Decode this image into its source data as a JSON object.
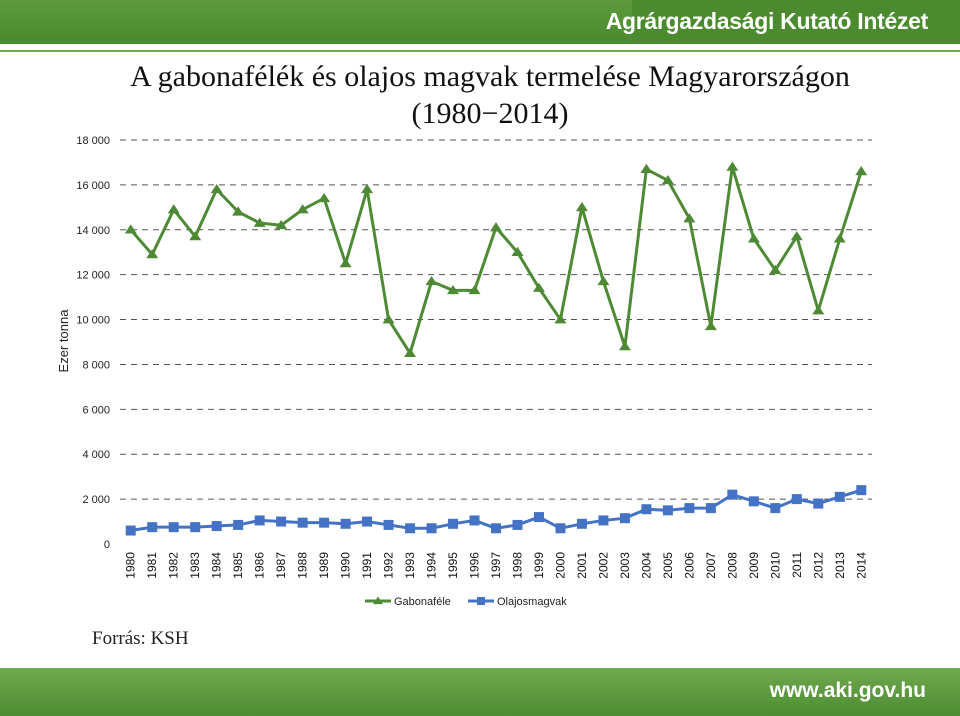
{
  "header": {
    "org_name": "Agrárgazdasági Kutató Intézet"
  },
  "footer": {
    "url": "www.aki.gov.hu"
  },
  "source": "Forrás: KSH",
  "colors": {
    "header_green": "#4b8a2f",
    "gabona": "#4e8a35",
    "olaj": "#4472c4"
  },
  "chart_data": {
    "type": "line",
    "title_line1": "A gabonafélék és olajos magvak termelése Magyarországon",
    "title_line2": "(1980−2014)",
    "ylabel": "Ezer tonna",
    "ylim": [
      0,
      18000
    ],
    "yticks": [
      0,
      2000,
      4000,
      6000,
      8000,
      10000,
      12000,
      14000,
      16000,
      18000
    ],
    "ytick_labels": [
      "0",
      "2 000",
      "4 000",
      "6 000",
      "8 000",
      "10 000",
      "12 000",
      "14 000",
      "16 000",
      "18 000"
    ],
    "grid": true,
    "legend_placement": "bottom",
    "x": [
      "1980",
      "1981",
      "1982",
      "1983",
      "1984",
      "1985",
      "1986",
      "1987",
      "1988",
      "1989",
      "1990",
      "1991",
      "1992",
      "1993",
      "1994",
      "1995",
      "1996",
      "1997",
      "1998",
      "1999",
      "2000",
      "2001",
      "2002",
      "2003",
      "2004",
      "2005",
      "2006",
      "2007",
      "2008",
      "2009",
      "2010",
      "2011",
      "2012",
      "2013",
      "2014"
    ],
    "series": [
      {
        "name": "Gabonaféle",
        "marker": "triangle",
        "values": [
          14000,
          12900,
          14900,
          13700,
          15800,
          14800,
          14300,
          14200,
          14900,
          15400,
          12500,
          15800,
          10000,
          8500,
          11700,
          11300,
          11300,
          14100,
          13000,
          11400,
          10000,
          15000,
          11700,
          8800,
          16700,
          16200,
          14500,
          9700,
          16800,
          13600,
          12200,
          13700,
          10400,
          13600,
          16600
        ]
      },
      {
        "name": "Olajosmagvak",
        "marker": "square",
        "values": [
          600,
          750,
          750,
          750,
          800,
          850,
          1050,
          1000,
          950,
          950,
          900,
          1000,
          850,
          700,
          700,
          900,
          1050,
          700,
          850,
          1200,
          700,
          900,
          1050,
          1150,
          1550,
          1500,
          1600,
          1600,
          2200,
          1900,
          1600,
          2000,
          1800,
          2100,
          2400
        ]
      }
    ]
  }
}
